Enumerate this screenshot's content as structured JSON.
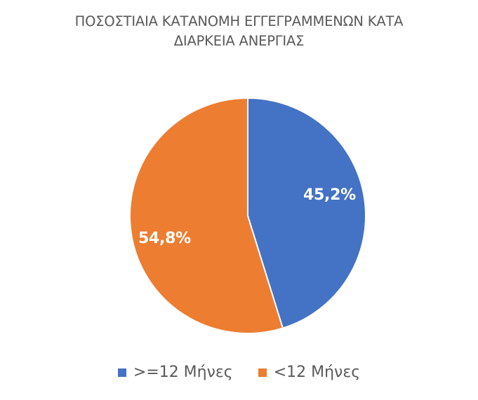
{
  "chart_data": {
    "type": "pie",
    "title": "ΠΟΣΟΣΤΙΑΙΑ ΚΑΤΑΝΟΜΗ ΕΓΓΕΓΡΑΜΜΕΝΩΝ ΚΑΤΑ ΔΙΑΡΚΕΙΑ ΑΝΕΡΓΙΑΣ",
    "title_lines": [
      "ΠΟΣΟΣΤΙΑΙΑ ΚΑΤΑΝΟΜΗ ΕΓΓΕΓΡΑΜΜΕΝΩΝ ΚΑΤΑ",
      "ΔΙΑΡΚΕΙΑ ΑΝΕΡΓΙΑΣ"
    ],
    "categories": [
      ">=12 Μήνες",
      "<12 Μήνες"
    ],
    "values": [
      45.2,
      54.8
    ],
    "data_labels": [
      "45,2%",
      "54,8%"
    ],
    "colors": [
      "#4472C4",
      "#ED7D31"
    ],
    "legend_position": "bottom",
    "start_angle": "12 o'clock, clockwise"
  },
  "legend": {
    "items": [
      {
        "label": ">=12 Μήνες",
        "color": "#4472C4"
      },
      {
        "label": "<12 Μήνες",
        "color": "#ED7D31"
      }
    ]
  }
}
